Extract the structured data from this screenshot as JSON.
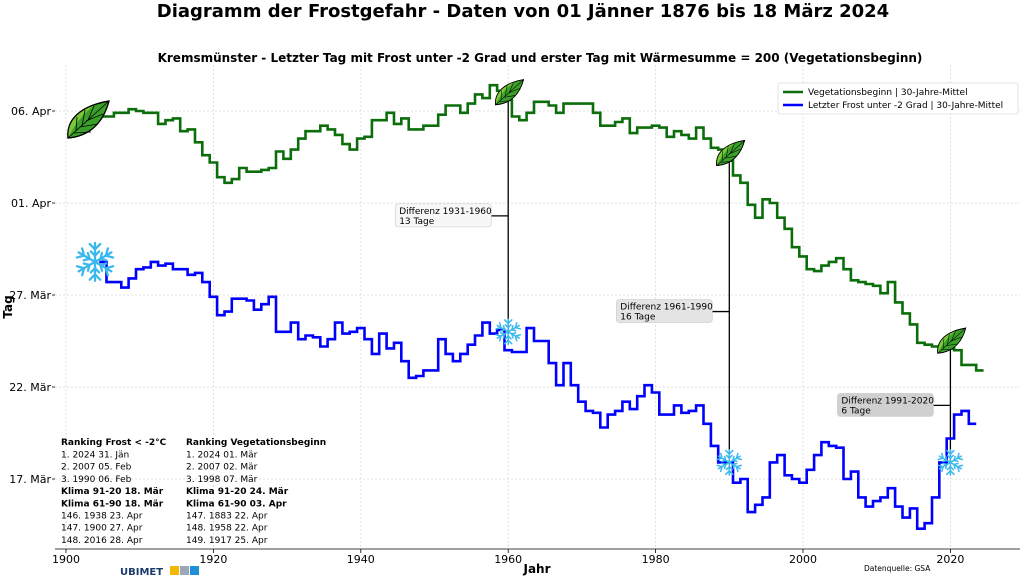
{
  "chart_data": {
    "type": "line",
    "title": "Diagramm der Frostgefahr - Daten von 01 Jänner 1876 bis 18 März 2024",
    "subtitle": "Kremsmünster - Letzter Tag mit Frost unter -2 Grad und erster Tag mit Wärmesumme = 200 (Vegetationsbeginn)",
    "xlabel": "Jahr",
    "ylabel": "Tag",
    "xlim": [
      1900,
      2030
    ],
    "ylim": [
      "13.5 Mär",
      "8.5 Apr"
    ],
    "x_ticks": [
      "1900",
      "1920",
      "1940",
      "1960",
      "1980",
      "2000",
      "2020"
    ],
    "y_ticks": [
      {
        "value": "17 Mär",
        "label": "17. Mär"
      },
      {
        "value": "22 Mär",
        "label": "22. Mär"
      },
      {
        "value": "27 Mär",
        "label": "27. Mär"
      },
      {
        "value": "1 Apr",
        "label": "01. Apr"
      },
      {
        "value": "6 Apr",
        "label": "06. Apr"
      }
    ],
    "grid": true,
    "step": true,
    "legend_position": "top-right",
    "series": [
      {
        "name": "Vegetationsbeginn | 30-Jahre-Mittel",
        "color": "#0b6e0b",
        "marker_icon": "leaf-icon",
        "points": [
          [
            1905,
            "5.7 Apr"
          ],
          [
            1906,
            "5.7 Apr"
          ],
          [
            1907,
            "5.9 Apr"
          ],
          [
            1908,
            "5.9 Apr"
          ],
          [
            1909,
            "6.1 Apr"
          ],
          [
            1910,
            "6.0 Apr"
          ],
          [
            1911,
            "5.9 Apr"
          ],
          [
            1912,
            "5.9 Apr"
          ],
          [
            1913,
            "5.3 Apr"
          ],
          [
            1914,
            "5.5 Apr"
          ],
          [
            1915,
            "5.6 Apr"
          ],
          [
            1916,
            "4.9 Apr"
          ],
          [
            1917,
            "5.0 Apr"
          ],
          [
            1918,
            "4.3 Apr"
          ],
          [
            1919,
            "3.6 Apr"
          ],
          [
            1920,
            "3.2 Apr"
          ],
          [
            1921,
            "2.4 Apr"
          ],
          [
            1922,
            "2.1 Apr"
          ],
          [
            1923,
            "2.3 Apr"
          ],
          [
            1924,
            "2.9 Apr"
          ],
          [
            1925,
            "2.7 Apr"
          ],
          [
            1926,
            "2.7 Apr"
          ],
          [
            1927,
            "2.8 Apr"
          ],
          [
            1928,
            "2.9 Apr"
          ],
          [
            1929,
            "3.8 Apr"
          ],
          [
            1930,
            "3.4 Apr"
          ],
          [
            1931,
            "3.9 Apr"
          ],
          [
            1932,
            "4.5 Apr"
          ],
          [
            1933,
            "4.9 Apr"
          ],
          [
            1934,
            "4.9 Apr"
          ],
          [
            1935,
            "5.2 Apr"
          ],
          [
            1936,
            "5.0 Apr"
          ],
          [
            1937,
            "4.7 Apr"
          ],
          [
            1938,
            "4.2 Apr"
          ],
          [
            1939,
            "3.9 Apr"
          ],
          [
            1940,
            "4.5 Apr"
          ],
          [
            1941,
            "4.6 Apr"
          ],
          [
            1942,
            "5.5 Apr"
          ],
          [
            1943,
            "5.5 Apr"
          ],
          [
            1944,
            "5.9 Apr"
          ],
          [
            1945,
            "5.3 Apr"
          ],
          [
            1946,
            "5.6 Apr"
          ],
          [
            1947,
            "5.0 Apr"
          ],
          [
            1948,
            "5.0 Apr"
          ],
          [
            1949,
            "5.2 Apr"
          ],
          [
            1950,
            "5.2 Apr"
          ],
          [
            1951,
            "5.8 Apr"
          ],
          [
            1952,
            "6.3 Apr"
          ],
          [
            1953,
            "6.3 Apr"
          ],
          [
            1954,
            "5.9 Apr"
          ],
          [
            1955,
            "6.4 Apr"
          ],
          [
            1956,
            "6.9 Apr"
          ],
          [
            1957,
            "6.7 Apr"
          ],
          [
            1958,
            "7.4 Apr"
          ],
          [
            1959,
            "7.1 Apr"
          ],
          [
            1960,
            "6.6 Apr"
          ],
          [
            1961,
            "5.7 Apr"
          ],
          [
            1962,
            "5.5 Apr"
          ],
          [
            1963,
            "5.9 Apr"
          ],
          [
            1964,
            "6.5 Apr"
          ],
          [
            1965,
            "6.5 Apr"
          ],
          [
            1966,
            "6.3 Apr"
          ],
          [
            1967,
            "5.9 Apr"
          ],
          [
            1968,
            "6.4 Apr"
          ],
          [
            1969,
            "6.4 Apr"
          ],
          [
            1970,
            "6.4 Apr"
          ],
          [
            1971,
            "6.4 Apr"
          ],
          [
            1972,
            "5.9 Apr"
          ],
          [
            1973,
            "5.2 Apr"
          ],
          [
            1974,
            "5.2 Apr"
          ],
          [
            1975,
            "5.4 Apr"
          ],
          [
            1976,
            "5.6 Apr"
          ],
          [
            1977,
            "4.8 Apr"
          ],
          [
            1978,
            "5.1 Apr"
          ],
          [
            1979,
            "5.1 Apr"
          ],
          [
            1980,
            "5.2 Apr"
          ],
          [
            1981,
            "5.1 Apr"
          ],
          [
            1982,
            "4.6 Apr"
          ],
          [
            1983,
            "4.9 Apr"
          ],
          [
            1984,
            "4.7 Apr"
          ],
          [
            1985,
            "4.5 Apr"
          ],
          [
            1986,
            "5.1 Apr"
          ],
          [
            1987,
            "4.5 Apr"
          ],
          [
            1988,
            "4.0 Apr"
          ],
          [
            1989,
            "3.9 Apr"
          ],
          [
            1990,
            "3.3 Apr"
          ],
          [
            1991,
            "2.5 Apr"
          ],
          [
            1992,
            "2.1 Apr"
          ],
          [
            1993,
            "31.9 Mär"
          ],
          [
            1994,
            "31.2 Mär"
          ],
          [
            1995,
            "1.2 Apr"
          ],
          [
            1996,
            "1.0 Apr"
          ],
          [
            1997,
            "31.2 Mär"
          ],
          [
            1998,
            "30.6 Mär"
          ],
          [
            1999,
            "29.6 Mär"
          ],
          [
            2000,
            "29.1 Mär"
          ],
          [
            2001,
            "28.4 Mär"
          ],
          [
            2002,
            "28.3 Mär"
          ],
          [
            2003,
            "28.6 Mär"
          ],
          [
            2004,
            "28.8 Mär"
          ],
          [
            2005,
            "29.0 Mär"
          ],
          [
            2006,
            "28.4 Mär"
          ],
          [
            2007,
            "27.8 Mär"
          ],
          [
            2008,
            "27.7 Mär"
          ],
          [
            2009,
            "27.6 Mär"
          ],
          [
            2010,
            "27.5 Mär"
          ],
          [
            2011,
            "27.1 Mär"
          ],
          [
            2012,
            "27.7 Mär"
          ],
          [
            2013,
            "26.6 Mär"
          ],
          [
            2014,
            "26.0 Mär"
          ],
          [
            2015,
            "25.4 Mär"
          ],
          [
            2016,
            "24.4 Mär"
          ],
          [
            2017,
            "24.3 Mär"
          ],
          [
            2018,
            "24.2 Mär"
          ],
          [
            2019,
            "24.2 Mär"
          ],
          [
            2020,
            "24.1 Mär"
          ],
          [
            2021,
            "24.0 Mär"
          ],
          [
            2022,
            "23.2 Mär"
          ],
          [
            2023,
            "23.2 Mär"
          ],
          [
            2024,
            "22.9 Mär"
          ]
        ]
      },
      {
        "name": "Letzter Frost unter -2 Grad | 30-Jahre-Mittel",
        "color": "#0000ff",
        "marker_icon": "snowflake-icon",
        "points": [
          [
            1905,
            "28.8 Mär"
          ],
          [
            1906,
            "27.7 Mär"
          ],
          [
            1907,
            "27.7 Mär"
          ],
          [
            1908,
            "27.4 Mär"
          ],
          [
            1909,
            "27.9 Mär"
          ],
          [
            1910,
            "28.4 Mär"
          ],
          [
            1911,
            "28.5 Mär"
          ],
          [
            1912,
            "28.8 Mär"
          ],
          [
            1913,
            "28.6 Mär"
          ],
          [
            1914,
            "28.7 Mär"
          ],
          [
            1915,
            "28.4 Mär"
          ],
          [
            1916,
            "28.4 Mär"
          ],
          [
            1917,
            "28.1 Mär"
          ],
          [
            1918,
            "28.2 Mär"
          ],
          [
            1919,
            "27.7 Mär"
          ],
          [
            1920,
            "26.9 Mär"
          ],
          [
            1921,
            "25.9 Mär"
          ],
          [
            1922,
            "26.1 Mär"
          ],
          [
            1923,
            "26.8 Mär"
          ],
          [
            1924,
            "26.8 Mär"
          ],
          [
            1925,
            "26.7 Mär"
          ],
          [
            1926,
            "26.2 Mär"
          ],
          [
            1927,
            "26.5 Mär"
          ],
          [
            1928,
            "26.9 Mär"
          ],
          [
            1929,
            "25.0 Mär"
          ],
          [
            1930,
            "25.0 Mär"
          ],
          [
            1931,
            "25.5 Mär"
          ],
          [
            1932,
            "24.6 Mär"
          ],
          [
            1933,
            "24.8 Mär"
          ],
          [
            1934,
            "24.7 Mär"
          ],
          [
            1935,
            "24.2 Mär"
          ],
          [
            1936,
            "24.6 Mär"
          ],
          [
            1937,
            "25.5 Mär"
          ],
          [
            1938,
            "24.9 Mär"
          ],
          [
            1939,
            "25.0 Mär"
          ],
          [
            1940,
            "25.2 Mär"
          ],
          [
            1941,
            "24.6 Mär"
          ],
          [
            1942,
            "23.8 Mär"
          ],
          [
            1943,
            "24.9 Mär"
          ],
          [
            1944,
            "24.1 Mär"
          ],
          [
            1945,
            "24.4 Mär"
          ],
          [
            1946,
            "23.4 Mär"
          ],
          [
            1947,
            "22.5 Mär"
          ],
          [
            1948,
            "22.6 Mär"
          ],
          [
            1949,
            "22.9 Mär"
          ],
          [
            1950,
            "22.9 Mär"
          ],
          [
            1951,
            "24.6 Mär"
          ],
          [
            1952,
            "23.8 Mär"
          ],
          [
            1953,
            "23.4 Mär"
          ],
          [
            1954,
            "23.8 Mär"
          ],
          [
            1955,
            "24.3 Mär"
          ],
          [
            1956,
            "24.8 Mär"
          ],
          [
            1957,
            "25.5 Mär"
          ],
          [
            1958,
            "24.9 Mär"
          ],
          [
            1959,
            "25.1 Mär"
          ],
          [
            1960,
            "24.0 Mär"
          ],
          [
            1961,
            "23.9 Mär"
          ],
          [
            1962,
            "23.9 Mär"
          ],
          [
            1963,
            "25.2 Mär"
          ],
          [
            1964,
            "24.5 Mär"
          ],
          [
            1965,
            "24.5 Mär"
          ],
          [
            1966,
            "23.3 Mär"
          ],
          [
            1967,
            "22.1 Mär"
          ],
          [
            1968,
            "23.3 Mär"
          ],
          [
            1969,
            "22.1 Mär"
          ],
          [
            1970,
            "21.2 Mär"
          ],
          [
            1971,
            "20.7 Mär"
          ],
          [
            1972,
            "20.6 Mär"
          ],
          [
            1973,
            "19.8 Mär"
          ],
          [
            1974,
            "20.5 Mär"
          ],
          [
            1975,
            "20.7 Mär"
          ],
          [
            1976,
            "21.2 Mär"
          ],
          [
            1977,
            "20.8 Mär"
          ],
          [
            1978,
            "21.5 Mär"
          ],
          [
            1979,
            "22.1 Mär"
          ],
          [
            1980,
            "21.7 Mär"
          ],
          [
            1981,
            "20.5 Mär"
          ],
          [
            1982,
            "20.5 Mär"
          ],
          [
            1983,
            "21.0 Mär"
          ],
          [
            1984,
            "20.6 Mär"
          ],
          [
            1985,
            "20.7 Mär"
          ],
          [
            1986,
            "21.0 Mär"
          ],
          [
            1987,
            "20.0 Mär"
          ],
          [
            1988,
            "18.8 Mär"
          ],
          [
            1989,
            "17.9 Mär"
          ],
          [
            1990,
            "17.9 Mär"
          ],
          [
            1991,
            "16.8 Mär"
          ],
          [
            1992,
            "17.0 Mär"
          ],
          [
            1993,
            "15.2 Mär"
          ],
          [
            1994,
            "15.6 Mär"
          ],
          [
            1995,
            "16.0 Mär"
          ],
          [
            1996,
            "17.9 Mär"
          ],
          [
            1997,
            "18.3 Mär"
          ],
          [
            1998,
            "17.2 Mär"
          ],
          [
            1999,
            "17.0 Mär"
          ],
          [
            2000,
            "16.8 Mär"
          ],
          [
            2001,
            "17.5 Mär"
          ],
          [
            2002,
            "18.3 Mär"
          ],
          [
            2003,
            "19.0 Mär"
          ],
          [
            2004,
            "18.8 Mär"
          ],
          [
            2005,
            "18.7 Mär"
          ],
          [
            2006,
            "17.0 Mär"
          ],
          [
            2007,
            "17.4 Mär"
          ],
          [
            2008,
            "16.0 Mär"
          ],
          [
            2009,
            "15.5 Mär"
          ],
          [
            2010,
            "15.8 Mär"
          ],
          [
            2011,
            "16.0 Mär"
          ],
          [
            2012,
            "16.5 Mär"
          ],
          [
            2013,
            "15.5 Mär"
          ],
          [
            2014,
            "14.9 Mär"
          ],
          [
            2015,
            "15.4 Mär"
          ],
          [
            2016,
            "14.3 Mär"
          ],
          [
            2017,
            "14.6 Mär"
          ],
          [
            2018,
            "16.0 Mär"
          ],
          [
            2019,
            "17.9 Mär"
          ],
          [
            2020,
            "19.2 Mär"
          ],
          [
            2021,
            "20.5 Mär"
          ],
          [
            2022,
            "20.7 Mär"
          ],
          [
            2023,
            "20.0 Mär"
          ]
        ]
      }
    ],
    "markers": [
      {
        "icon": "leaf-icon",
        "x": 1904,
        "y": "5.5 Apr",
        "size": "large"
      },
      {
        "icon": "snowflake-icon",
        "x": 1904,
        "y": "28.8 Mär",
        "size": "large"
      },
      {
        "icon": "leaf-icon",
        "x": 1960,
        "y": "7.0 Apr"
      },
      {
        "icon": "leaf-icon",
        "x": 1990,
        "y": "3.7 Apr"
      },
      {
        "icon": "leaf-icon",
        "x": 2020,
        "y": "24.5 Mär"
      },
      {
        "icon": "snowflake-icon",
        "x": 1960,
        "y": "25.0 Mär"
      },
      {
        "icon": "snowflake-icon",
        "x": 1990,
        "y": "17.9 Mär"
      },
      {
        "icon": "snowflake-icon",
        "x": 2020,
        "y": "17.9 Mär"
      }
    ],
    "annotations": [
      {
        "x": 1960,
        "y_top": "6.6 Apr",
        "y_bottom": "25.0 Mär",
        "line1": "Differenz 1931-1960",
        "line2": "13 Tage",
        "box_color": "#f7f7f7"
      },
      {
        "x": 1990,
        "y_top": "3.3 Apr",
        "y_bottom": "17.9 Mär",
        "line1": "Differenz 1961-1990",
        "line2": "16 Tage",
        "box_color": "#e4e4e4"
      },
      {
        "x": 2020,
        "y_top": "24.1 Mär",
        "y_bottom": "17.9 Mär",
        "line1": "Differenz 1991-2020",
        "line2": "6 Tage",
        "box_color": "#d0d0d0"
      }
    ]
  },
  "ranking_frost": {
    "heading": "Ranking Frost < -2°C",
    "lines": [
      {
        "text": "1.  2024 31. Jän",
        "bold": false
      },
      {
        "text": "2.  2007 05. Feb",
        "bold": false
      },
      {
        "text": "3.  1990 06. Feb",
        "bold": false
      },
      {
        "text": "Klima 91-20 18. Mär",
        "bold": true
      },
      {
        "text": "Klima 61-90 18. Mär",
        "bold": true
      },
      {
        "text": "146.  1938 23. Apr",
        "bold": false
      },
      {
        "text": "147.  1900 27. Apr",
        "bold": false
      },
      {
        "text": "148.  2016 28. Apr",
        "bold": false
      }
    ]
  },
  "ranking_vegetation": {
    "heading": "Ranking Vegetationsbeginn",
    "lines": [
      {
        "text": "1.  2024 01. Mär",
        "bold": false
      },
      {
        "text": "2.  2007 02. Mär",
        "bold": false
      },
      {
        "text": "3.  1998 07. Mär",
        "bold": false
      },
      {
        "text": "Klima 91-20 24. Mär",
        "bold": true
      },
      {
        "text": "Klima 61-90 03. Apr",
        "bold": true
      },
      {
        "text": "147.  1883 22. Apr",
        "bold": false
      },
      {
        "text": "148.  1958 22. Apr",
        "bold": false
      },
      {
        "text": "149.  1917 25. Apr",
        "bold": false
      }
    ]
  },
  "logo": {
    "text": "UBIMET",
    "colors": [
      "#1a3a6e",
      "#f5b800",
      "#9aa8b8",
      "#1e90d6"
    ]
  },
  "source": "Datenquelle: GSA"
}
